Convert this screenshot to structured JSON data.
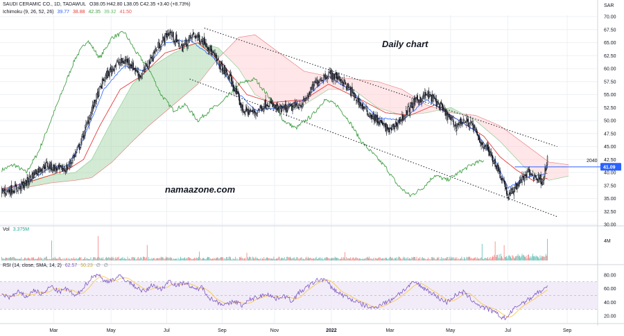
{
  "header": {
    "symbol_line": "SAUDI CERAMIC CO., 1D, TADAWUL",
    "ohlc": "O38.05  H42.80  L38.05  C42.35  +3.40 (+8.73%)",
    "ichimoku_label": "Ichimoku (9, 26, 52, 26)",
    "ichimoku_values": [
      {
        "text": "39.77",
        "color": "#2962ff"
      },
      {
        "text": "38.88",
        "color": "#e53935"
      },
      {
        "text": "42.35",
        "color": "#43a047"
      },
      {
        "text": "39.32",
        "color": "#66bb6a"
      },
      {
        "text": "41.50",
        "color": "#ef5350"
      }
    ],
    "currency": "SAR"
  },
  "annotations": {
    "title": "Daily chart",
    "watermark": "namaazone.com",
    "level_label": "2040",
    "price_tag": "41.09"
  },
  "volume_pane": {
    "label": "Vol",
    "value": "3.375M",
    "axis_label": "4M"
  },
  "rsi_pane": {
    "label": "RSI (14, close, SMA, 14, 2)",
    "values": [
      {
        "text": "62.57",
        "color": "#7e57c2"
      },
      {
        "text": "50.23",
        "color": "#f9c74f"
      },
      {
        "text": "∅",
        "color": "#787b86"
      },
      {
        "text": "∅",
        "color": "#787b86"
      }
    ]
  },
  "colors": {
    "up": "#26a69a",
    "down": "#ef5350",
    "candle": "#131722",
    "tenkan": "#2962ff",
    "kijun": "#e53935",
    "lagging": "#43a047",
    "cloud_bull": "#a5d6a7",
    "cloud_bear": "#ffcdd2",
    "rsi": "#7e57c2",
    "rsi_ma": "#f9c74f",
    "rsi_band": "#ede7f6",
    "hline": "#2962ff"
  },
  "chart_data": [
    {
      "type": "candlestick",
      "ylim": [
        30,
        70
      ],
      "yticks": [
        "30.00",
        "32.50",
        "35.00",
        "37.50",
        "40.00",
        "42.50",
        "45.00",
        "47.50",
        "50.00",
        "52.50",
        "55.00",
        "57.50",
        "60.00",
        "62.50",
        "65.00",
        "67.50",
        "70.00"
      ],
      "xticks": [
        "Mar",
        "May",
        "Jul",
        "Sep",
        "Nov",
        "2022",
        "Mar",
        "May",
        "Jul",
        "Sep"
      ],
      "close_anchors": [
        [
          0,
          36.3
        ],
        [
          20,
          37.0
        ],
        [
          30,
          38.0
        ],
        [
          40,
          40.0
        ],
        [
          55,
          41.5
        ],
        [
          70,
          40.5
        ],
        [
          80,
          40.8
        ],
        [
          95,
          45.0
        ],
        [
          110,
          52.0
        ],
        [
          125,
          58.0
        ],
        [
          140,
          61.0
        ],
        [
          155,
          61.5
        ],
        [
          170,
          58.5
        ],
        [
          190,
          64.0
        ],
        [
          205,
          67.0
        ],
        [
          220,
          64.0
        ],
        [
          235,
          66.5
        ],
        [
          250,
          65.0
        ],
        [
          265,
          61.0
        ],
        [
          280,
          58.0
        ],
        [
          295,
          52.0
        ],
        [
          310,
          51.5
        ],
        [
          325,
          53.5
        ],
        [
          340,
          52.0
        ],
        [
          355,
          52.5
        ],
        [
          370,
          53.5
        ],
        [
          385,
          57.5
        ],
        [
          400,
          59.0
        ],
        [
          415,
          58.0
        ],
        [
          430,
          55.0
        ],
        [
          445,
          52.0
        ],
        [
          460,
          50.0
        ],
        [
          475,
          48.0
        ],
        [
          490,
          50.5
        ],
        [
          505,
          53.5
        ],
        [
          520,
          55.0
        ],
        [
          530,
          54.0
        ],
        [
          545,
          51.0
        ],
        [
          555,
          49.0
        ],
        [
          565,
          50.0
        ],
        [
          575,
          49.5
        ],
        [
          585,
          46.0
        ],
        [
          595,
          44.5
        ],
        [
          605,
          41.5
        ],
        [
          615,
          38.0
        ],
        [
          620,
          35.2
        ],
        [
          628,
          37.0
        ],
        [
          635,
          38.5
        ],
        [
          645,
          40.0
        ],
        [
          655,
          39.0
        ],
        [
          662,
          38.5
        ],
        [
          668,
          42.3
        ]
      ],
      "tenkan_anchors": [
        [
          0,
          36.5
        ],
        [
          30,
          38.0
        ],
        [
          60,
          41.0
        ],
        [
          80,
          41.2
        ],
        [
          100,
          46.5
        ],
        [
          125,
          56.0
        ],
        [
          150,
          60.5
        ],
        [
          175,
          59.5
        ],
        [
          200,
          65.0
        ],
        [
          230,
          65.5
        ],
        [
          260,
          62.0
        ],
        [
          285,
          56.0
        ],
        [
          310,
          52.0
        ],
        [
          340,
          52.5
        ],
        [
          370,
          54.0
        ],
        [
          400,
          58.5
        ],
        [
          430,
          55.5
        ],
        [
          460,
          50.5
        ],
        [
          490,
          50.0
        ],
        [
          520,
          54.0
        ],
        [
          550,
          51.0
        ],
        [
          580,
          48.0
        ],
        [
          605,
          42.0
        ],
        [
          620,
          37.0
        ],
        [
          640,
          39.0
        ],
        [
          668,
          39.77
        ]
      ],
      "kijun_anchors": [
        [
          0,
          36.8
        ],
        [
          40,
          38.5
        ],
        [
          80,
          40.5
        ],
        [
          100,
          42.5
        ],
        [
          120,
          49.0
        ],
        [
          145,
          56.0
        ],
        [
          170,
          58.5
        ],
        [
          200,
          63.0
        ],
        [
          240,
          65.0
        ],
        [
          270,
          61.0
        ],
        [
          300,
          55.0
        ],
        [
          330,
          53.5
        ],
        [
          370,
          54.0
        ],
        [
          400,
          57.0
        ],
        [
          440,
          54.0
        ],
        [
          470,
          51.5
        ],
        [
          500,
          51.0
        ],
        [
          530,
          53.0
        ],
        [
          560,
          50.0
        ],
        [
          590,
          47.0
        ],
        [
          610,
          43.0
        ],
        [
          630,
          40.5
        ],
        [
          650,
          38.5
        ],
        [
          668,
          38.88
        ]
      ],
      "lagging_anchors": [
        [
          0,
          40.5
        ],
        [
          15,
          41.5
        ],
        [
          30,
          40.0
        ],
        [
          45,
          44.0
        ],
        [
          60,
          50.0
        ],
        [
          75,
          56.0
        ],
        [
          90,
          62.0
        ],
        [
          105,
          65.5
        ],
        [
          120,
          62.0
        ],
        [
          135,
          66.0
        ],
        [
          150,
          67.0
        ],
        [
          165,
          63.0
        ],
        [
          180,
          60.0
        ],
        [
          195,
          55.0
        ],
        [
          210,
          52.0
        ],
        [
          225,
          53.0
        ],
        [
          240,
          50.0
        ],
        [
          255,
          52.0
        ],
        [
          270,
          53.5
        ],
        [
          290,
          57.0
        ],
        [
          310,
          58.0
        ],
        [
          330,
          54.0
        ],
        [
          345,
          50.0
        ],
        [
          360,
          48.5
        ],
        [
          380,
          51.0
        ],
        [
          395,
          54.0
        ],
        [
          410,
          53.0
        ],
        [
          425,
          50.0
        ],
        [
          440,
          46.0
        ],
        [
          455,
          43.5
        ],
        [
          470,
          41.0
        ],
        [
          485,
          37.5
        ],
        [
          500,
          35.5
        ],
        [
          515,
          37.0
        ],
        [
          530,
          39.5
        ],
        [
          545,
          38.5
        ],
        [
          560,
          40.0
        ],
        [
          575,
          41.5
        ],
        [
          590,
          42.35
        ]
      ],
      "span_a_anchors": [
        [
          26,
          38.0
        ],
        [
          60,
          39.5
        ],
        [
          90,
          40.0
        ],
        [
          110,
          42.5
        ],
        [
          135,
          50.0
        ],
        [
          160,
          57.0
        ],
        [
          180,
          60.0
        ],
        [
          210,
          63.0
        ],
        [
          240,
          65.0
        ],
        [
          265,
          64.0
        ],
        [
          290,
          60.0
        ],
        [
          310,
          55.0
        ],
        [
          340,
          52.5
        ],
        [
          370,
          53.0
        ],
        [
          400,
          56.0
        ],
        [
          430,
          56.0
        ],
        [
          460,
          52.5
        ],
        [
          490,
          51.0
        ],
        [
          520,
          51.5
        ],
        [
          550,
          52.5
        ],
        [
          580,
          50.0
        ],
        [
          610,
          46.0
        ],
        [
          640,
          41.0
        ],
        [
          670,
          38.5
        ],
        [
          694,
          39.32
        ]
      ],
      "span_b_anchors": [
        [
          26,
          37.0
        ],
        [
          60,
          38.0
        ],
        [
          90,
          38.5
        ],
        [
          110,
          39.0
        ],
        [
          135,
          42.0
        ],
        [
          160,
          46.0
        ],
        [
          180,
          49.0
        ],
        [
          210,
          53.0
        ],
        [
          240,
          57.0
        ],
        [
          265,
          62.0
        ],
        [
          290,
          66.0
        ],
        [
          310,
          66.5
        ],
        [
          340,
          63.0
        ],
        [
          370,
          59.5
        ],
        [
          400,
          58.5
        ],
        [
          430,
          58.0
        ],
        [
          460,
          57.5
        ],
        [
          490,
          56.0
        ],
        [
          520,
          53.0
        ],
        [
          550,
          51.5
        ],
        [
          580,
          51.0
        ],
        [
          610,
          49.0
        ],
        [
          640,
          45.5
        ],
        [
          670,
          42.0
        ],
        [
          694,
          41.5
        ]
      ],
      "trendlines": [
        {
          "from": [
            248,
            67.8
          ],
          "to": [
            680,
            45.0
          ]
        },
        {
          "from": [
            230,
            58.0
          ],
          "to": [
            680,
            31.5
          ]
        }
      ],
      "horizontal_level": 41.09
    },
    {
      "type": "bar",
      "name": "Vol",
      "ylim": [
        0,
        5
      ],
      "spikes": [
        [
          61,
          3.6
        ],
        [
          118,
          4.4
        ],
        [
          178,
          2.8
        ],
        [
          242,
          1.6
        ],
        [
          300,
          1.4
        ],
        [
          420,
          1.5
        ],
        [
          588,
          3.0
        ],
        [
          604,
          3.4
        ],
        [
          615,
          2.2
        ],
        [
          668,
          3.375
        ]
      ]
    },
    {
      "type": "line",
      "name": "RSI",
      "ylim": [
        10,
        90
      ],
      "yticks": [
        "20.00",
        "40.00",
        "60.00",
        "80.00"
      ],
      "bands": [
        30,
        70
      ],
      "rsi_anchors": [
        [
          0,
          52
        ],
        [
          10,
          47
        ],
        [
          20,
          55
        ],
        [
          30,
          48
        ],
        [
          40,
          58
        ],
        [
          50,
          51
        ],
        [
          60,
          64
        ],
        [
          70,
          55
        ],
        [
          80,
          60
        ],
        [
          90,
          48
        ],
        [
          100,
          62
        ],
        [
          110,
          76
        ],
        [
          118,
          82
        ],
        [
          125,
          70
        ],
        [
          135,
          73
        ],
        [
          145,
          78
        ],
        [
          155,
          70
        ],
        [
          165,
          62
        ],
        [
          175,
          55
        ],
        [
          185,
          66
        ],
        [
          195,
          58
        ],
        [
          205,
          72
        ],
        [
          215,
          64
        ],
        [
          225,
          70
        ],
        [
          235,
          58
        ],
        [
          245,
          62
        ],
        [
          255,
          46
        ],
        [
          265,
          40
        ],
        [
          275,
          36
        ],
        [
          285,
          42
        ],
        [
          295,
          35
        ],
        [
          305,
          45
        ],
        [
          315,
          48
        ],
        [
          325,
          53
        ],
        [
          335,
          45
        ],
        [
          345,
          50
        ],
        [
          355,
          42
        ],
        [
          365,
          55
        ],
        [
          375,
          63
        ],
        [
          385,
          72
        ],
        [
          395,
          74
        ],
        [
          405,
          60
        ],
        [
          415,
          52
        ],
        [
          425,
          46
        ],
        [
          435,
          40
        ],
        [
          445,
          35
        ],
        [
          455,
          31
        ],
        [
          465,
          38
        ],
        [
          475,
          42
        ],
        [
          485,
          52
        ],
        [
          495,
          60
        ],
        [
          505,
          70
        ],
        [
          515,
          62
        ],
        [
          525,
          55
        ],
        [
          535,
          46
        ],
        [
          545,
          40
        ],
        [
          555,
          50
        ],
        [
          565,
          55
        ],
        [
          575,
          44
        ],
        [
          585,
          35
        ],
        [
          595,
          30
        ],
        [
          605,
          24
        ],
        [
          612,
          18
        ],
        [
          618,
          17
        ],
        [
          625,
          28
        ],
        [
          635,
          38
        ],
        [
          645,
          44
        ],
        [
          655,
          54
        ],
        [
          662,
          57
        ],
        [
          668,
          62.57
        ]
      ]
    }
  ]
}
